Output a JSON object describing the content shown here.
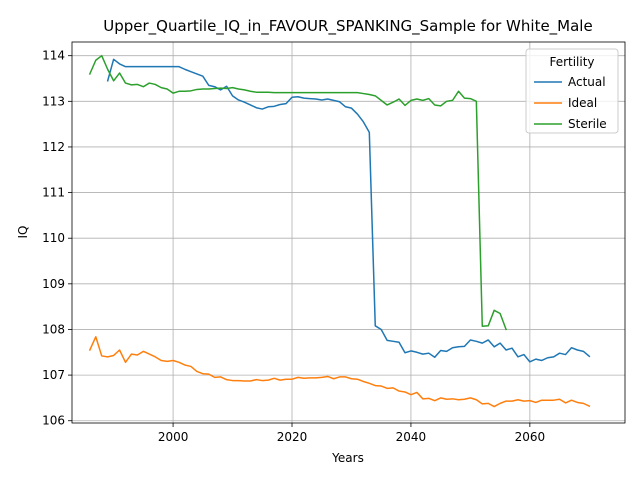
{
  "chart_data": {
    "type": "line",
    "title": "Upper_Quartile_IQ_in_FAVOUR_SPANKING_Sample for White_Male",
    "xlabel": "Years",
    "ylabel": "IQ",
    "xlim": [
      1983,
      2076
    ],
    "ylim": [
      105.95,
      114.3
    ],
    "xticks": [
      2000,
      2020,
      2040,
      2060
    ],
    "yticks": [
      106,
      107,
      108,
      109,
      110,
      111,
      112,
      113,
      114
    ],
    "grid": true,
    "legend": {
      "title": "Fertility",
      "position": "top-right"
    },
    "series": [
      {
        "name": "Actual",
        "color": "#1f77b4",
        "x": [
          1989,
          1990,
          1991,
          1992,
          1993,
          1995,
          1998,
          2000,
          2001,
          2002,
          2003,
          2004,
          2005,
          2006,
          2007,
          2008,
          2009,
          2010,
          2011,
          2012,
          2013,
          2014,
          2015,
          2016,
          2017,
          2018,
          2019,
          2020,
          2021,
          2022,
          2023,
          2024,
          2025,
          2026,
          2027,
          2028,
          2029,
          2030,
          2031,
          2032,
          2033,
          2034,
          2035,
          2036,
          2037,
          2038,
          2039,
          2040,
          2041,
          2042,
          2043,
          2044,
          2045,
          2046,
          2047,
          2048,
          2049,
          2050,
          2051,
          2052,
          2053,
          2054,
          2055,
          2056,
          2057,
          2058,
          2059,
          2060,
          2061,
          2062,
          2063,
          2064,
          2065,
          2066,
          2067,
          2068,
          2069,
          2070
        ],
        "values": [
          113.45,
          113.92,
          113.82,
          113.76,
          113.76,
          113.76,
          113.76,
          113.76,
          113.76,
          113.7,
          113.65,
          113.6,
          113.55,
          113.35,
          113.32,
          113.25,
          113.33,
          113.12,
          113.03,
          112.98,
          112.92,
          112.86,
          112.83,
          112.88,
          112.89,
          112.93,
          112.95,
          113.09,
          113.1,
          113.07,
          113.06,
          113.05,
          113.03,
          113.05,
          113.02,
          112.99,
          112.88,
          112.85,
          112.72,
          112.55,
          112.32,
          108.08,
          108.0,
          107.76,
          107.74,
          107.72,
          107.49,
          107.53,
          107.5,
          107.46,
          107.48,
          107.39,
          107.54,
          107.52,
          107.6,
          107.62,
          107.63,
          107.77,
          107.74,
          107.7,
          107.77,
          107.62,
          107.7,
          107.55,
          107.59,
          107.4,
          107.45,
          107.29,
          107.35,
          107.32,
          107.38,
          107.4,
          107.48,
          107.45,
          107.6,
          107.55,
          107.52,
          107.41
        ]
      },
      {
        "name": "Ideal",
        "color": "#ff7f0e",
        "x": [
          1986,
          1987,
          1988,
          1989,
          1990,
          1991,
          1992,
          1993,
          1994,
          1995,
          1996,
          1997,
          1998,
          1999,
          2000,
          2001,
          2002,
          2003,
          2004,
          2005,
          2006,
          2007,
          2008,
          2009,
          2010,
          2011,
          2012,
          2013,
          2014,
          2015,
          2016,
          2017,
          2018,
          2019,
          2020,
          2021,
          2022,
          2023,
          2024,
          2025,
          2026,
          2027,
          2028,
          2029,
          2030,
          2031,
          2032,
          2033,
          2034,
          2035,
          2036,
          2037,
          2038,
          2039,
          2040,
          2041,
          2042,
          2043,
          2044,
          2045,
          2046,
          2047,
          2048,
          2049,
          2050,
          2051,
          2052,
          2053,
          2054,
          2055,
          2056,
          2057,
          2058,
          2059,
          2060,
          2061,
          2062,
          2063,
          2064,
          2065,
          2066,
          2067,
          2068,
          2069,
          2070
        ],
        "values": [
          107.55,
          107.84,
          107.42,
          107.4,
          107.43,
          107.55,
          107.28,
          107.46,
          107.44,
          107.52,
          107.46,
          107.4,
          107.32,
          107.3,
          107.32,
          107.28,
          107.22,
          107.19,
          107.08,
          107.03,
          107.02,
          106.95,
          106.96,
          106.9,
          106.88,
          106.88,
          106.87,
          106.87,
          106.9,
          106.88,
          106.89,
          106.93,
          106.89,
          106.91,
          106.91,
          106.95,
          106.93,
          106.94,
          106.94,
          106.95,
          106.97,
          106.92,
          106.96,
          106.96,
          106.92,
          106.91,
          106.86,
          106.82,
          106.77,
          106.76,
          106.71,
          106.72,
          106.65,
          106.63,
          106.57,
          106.62,
          106.48,
          106.49,
          106.44,
          106.5,
          106.47,
          106.48,
          106.46,
          106.47,
          106.5,
          106.46,
          106.37,
          106.38,
          106.31,
          106.38,
          106.43,
          106.43,
          106.46,
          106.43,
          106.44,
          106.4,
          106.45,
          106.45,
          106.45,
          106.47,
          106.39,
          106.45,
          106.4,
          106.38,
          106.32
        ]
      },
      {
        "name": "Sterile",
        "color": "#2ca02c",
        "x": [
          1986,
          1987,
          1988,
          1989,
          1990,
          1991,
          1992,
          1993,
          1994,
          1995,
          1996,
          1997,
          1998,
          1999,
          2000,
          2001,
          2002,
          2003,
          2004,
          2005,
          2006,
          2007,
          2008,
          2009,
          2010,
          2011,
          2012,
          2013,
          2014,
          2015,
          2016,
          2017,
          2018,
          2019,
          2020,
          2021,
          2022,
          2023,
          2024,
          2025,
          2026,
          2027,
          2028,
          2029,
          2030,
          2031,
          2032,
          2033,
          2034,
          2035,
          2036,
          2037,
          2038,
          2039,
          2040,
          2041,
          2042,
          2043,
          2044,
          2045,
          2046,
          2047,
          2048,
          2049,
          2050,
          2051,
          2052,
          2053,
          2054,
          2055,
          2056
        ],
        "values": [
          113.6,
          113.9,
          114.0,
          113.7,
          113.45,
          113.62,
          113.4,
          113.36,
          113.37,
          113.32,
          113.4,
          113.37,
          113.3,
          113.27,
          113.18,
          113.22,
          113.22,
          113.23,
          113.26,
          113.27,
          113.27,
          113.28,
          113.29,
          113.28,
          113.3,
          113.27,
          113.25,
          113.22,
          113.2,
          113.2,
          113.2,
          113.19,
          113.19,
          113.19,
          113.19,
          113.19,
          113.19,
          113.19,
          113.19,
          113.19,
          113.19,
          113.19,
          113.19,
          113.19,
          113.19,
          113.19,
          113.17,
          113.15,
          113.12,
          113.02,
          112.92,
          112.98,
          113.05,
          112.91,
          113.02,
          113.05,
          113.02,
          113.06,
          112.92,
          112.9,
          113.0,
          113.02,
          113.22,
          113.07,
          113.06,
          113.0,
          108.07,
          108.08,
          108.42,
          108.35,
          108.0
        ]
      }
    ]
  }
}
